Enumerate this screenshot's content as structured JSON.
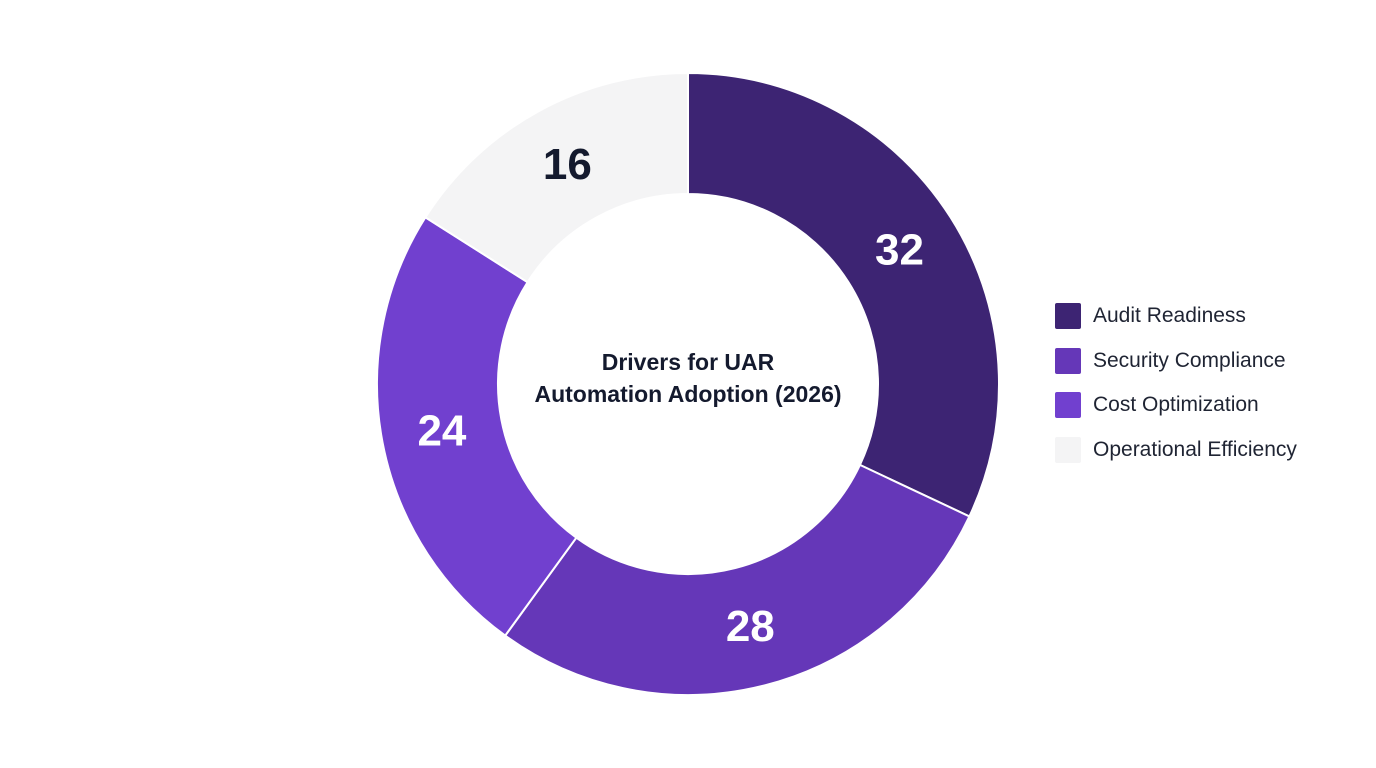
{
  "chart_data": {
    "type": "pie",
    "title_lines": [
      "Drivers for UAR",
      "Automation Adoption (2026)"
    ],
    "categories": [
      "Audit Readiness",
      "Security Compliance",
      "Cost Optimization",
      "Operational Efficiency"
    ],
    "values": [
      32,
      28,
      24,
      16
    ],
    "colors": [
      "#3d2473",
      "#6537b8",
      "#7140cf",
      "#f4f4f5"
    ],
    "label_colors": [
      "#ffffff",
      "#ffffff",
      "#ffffff",
      "#141a2e"
    ],
    "donut": true,
    "legend_position": "right"
  }
}
